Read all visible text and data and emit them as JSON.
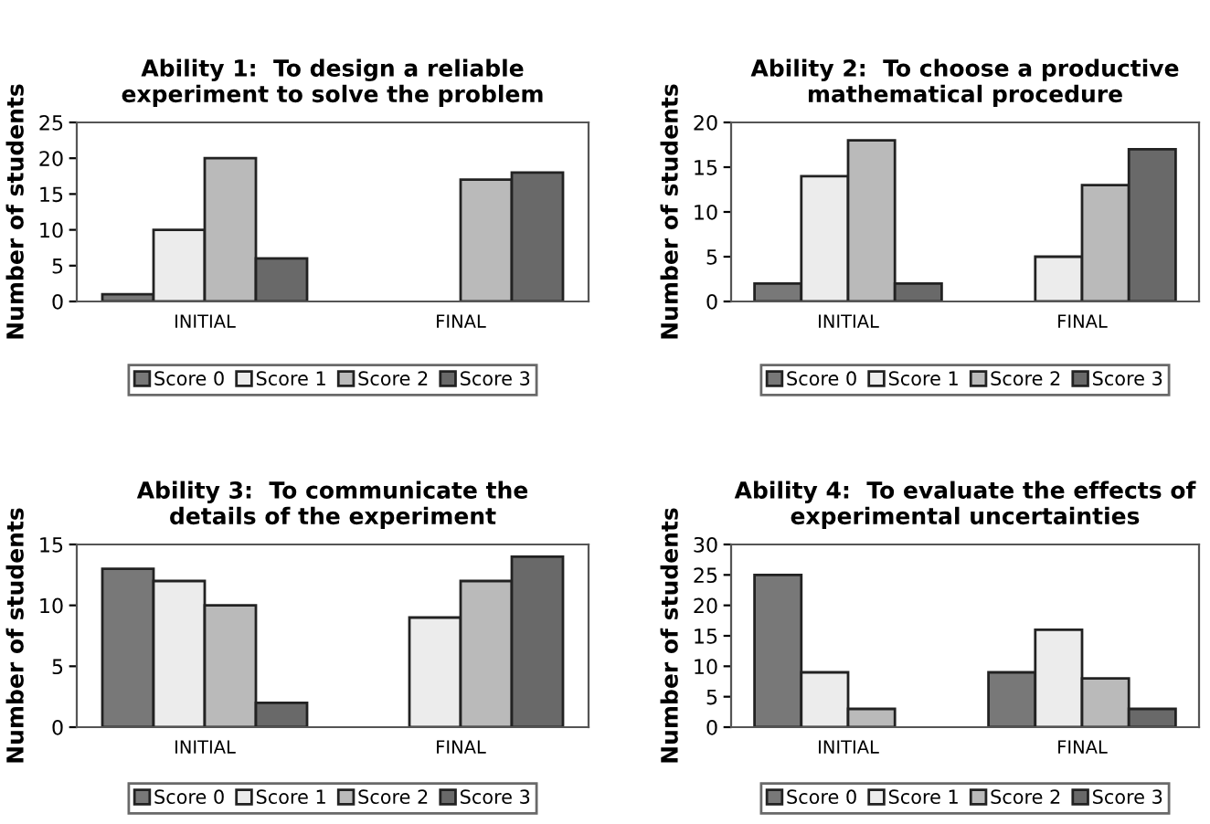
{
  "chart_data": [
    {
      "type": "bar",
      "title": "Ability 1:  To design a reliable\nexperiment to solve the problem",
      "ylabel": "Number of students",
      "categories": [
        "INITIAL",
        "FINAL"
      ],
      "ylim": [
        0,
        25
      ],
      "yticks": [
        0,
        5,
        10,
        15,
        20,
        25
      ],
      "legend": "bottom",
      "grid": false,
      "series": [
        {
          "name": "Score 0",
          "color": "#787878",
          "values": [
            1,
            null
          ]
        },
        {
          "name": "Score 1",
          "color": "#ececec",
          "values": [
            10,
            null
          ]
        },
        {
          "name": "Score 2",
          "color": "#bababa",
          "values": [
            20,
            17
          ]
        },
        {
          "name": "Score 3",
          "color": "#696969",
          "values": [
            6,
            18
          ]
        }
      ]
    },
    {
      "type": "bar",
      "title": "Ability 2:  To choose a productive\nmathematical procedure",
      "ylabel": "Number of students",
      "categories": [
        "INITIAL",
        "FINAL"
      ],
      "ylim": [
        0,
        20
      ],
      "yticks": [
        0,
        5,
        10,
        15,
        20
      ],
      "legend": "bottom",
      "grid": false,
      "series": [
        {
          "name": "Score 0",
          "color": "#787878",
          "values": [
            2,
            null
          ]
        },
        {
          "name": "Score 1",
          "color": "#ececec",
          "values": [
            14,
            5
          ]
        },
        {
          "name": "Score 2",
          "color": "#bababa",
          "values": [
            18,
            13
          ]
        },
        {
          "name": "Score 3",
          "color": "#696969",
          "values": [
            2,
            17
          ]
        }
      ]
    },
    {
      "type": "bar",
      "title": "Ability 3:  To communicate the\ndetails of the experiment",
      "ylabel": "Number of students",
      "categories": [
        "INITIAL",
        "FINAL"
      ],
      "ylim": [
        0,
        15
      ],
      "yticks": [
        0,
        5,
        10,
        15
      ],
      "legend": "bottom",
      "grid": false,
      "series": [
        {
          "name": "Score 0",
          "color": "#787878",
          "values": [
            13,
            null
          ]
        },
        {
          "name": "Score 1",
          "color": "#ececec",
          "values": [
            12,
            9
          ]
        },
        {
          "name": "Score 2",
          "color": "#bababa",
          "values": [
            10,
            12
          ]
        },
        {
          "name": "Score 3",
          "color": "#696969",
          "values": [
            2,
            14
          ]
        }
      ]
    },
    {
      "type": "bar",
      "title": "Ability 4:  To evaluate the effects of\nexperimental uncertainties",
      "ylabel": "Number of students",
      "categories": [
        "INITIAL",
        "FINAL"
      ],
      "ylim": [
        0,
        30
      ],
      "yticks": [
        0,
        5,
        10,
        15,
        20,
        25,
        30
      ],
      "legend": "bottom",
      "grid": false,
      "series": [
        {
          "name": "Score 0",
          "color": "#787878",
          "values": [
            25,
            9
          ]
        },
        {
          "name": "Score 1",
          "color": "#ececec",
          "values": [
            9,
            16
          ]
        },
        {
          "name": "Score 2",
          "color": "#bababa",
          "values": [
            3,
            8
          ]
        },
        {
          "name": "Score 3",
          "color": "#696969",
          "values": [
            null,
            3
          ]
        }
      ]
    }
  ]
}
